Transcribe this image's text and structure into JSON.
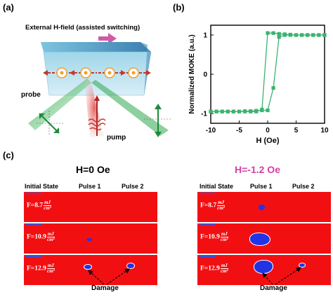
{
  "panel_a": {
    "label": "(a)",
    "title": "External H-field (assisted switching)",
    "probe_label": "probe",
    "pump_label": "pump"
  },
  "panel_b": {
    "label": "(b)"
  },
  "panel_c": {
    "label": "(c)",
    "left_title": "H=0 Oe",
    "right_title": "H=-1.2 Oe",
    "right_title_color": "#d6409f",
    "columns": [
      "Initial State",
      "Pulse 1",
      "Pulse 2"
    ],
    "rows": [
      {
        "prefix": "F=8.7",
        "unit_num": "mJ",
        "unit_den": "cm²"
      },
      {
        "prefix": "F=10.9",
        "unit_num": "mJ",
        "unit_den": "cm²"
      },
      {
        "prefix": "F=12.9",
        "unit_num": "mJ",
        "unit_den": "cm²"
      }
    ],
    "damage_label": "Damage",
    "cell_color": "#f20f12"
  },
  "chart_data": {
    "type": "line",
    "xlabel": "H (Oe)",
    "ylabel": "Normalized MOKE (a.u.)",
    "xlim": [
      -10,
      10
    ],
    "ylim": [
      -1.25,
      1.25
    ],
    "xticks": [
      -10,
      -5,
      0,
      5,
      10
    ],
    "yticks": [
      -1,
      0,
      1
    ],
    "color": "#3cb371",
    "series": [
      {
        "x": [
          -10,
          -9,
          -8,
          -7,
          -6,
          -5,
          -4,
          -3,
          -2,
          -1,
          0,
          1,
          2,
          3,
          4,
          5,
          6,
          7,
          8,
          9,
          10
        ],
        "y": [
          -0.95,
          -0.95,
          -0.95,
          -0.95,
          -0.95,
          -0.95,
          -0.95,
          -0.95,
          -0.95,
          -0.9,
          1.05,
          1.05,
          1.03,
          1.02,
          1.01,
          1.0,
          1.0,
          1.0,
          1.0,
          1.0,
          1.0
        ]
      },
      {
        "x": [
          10,
          9,
          8,
          7,
          6,
          5,
          4,
          3,
          2,
          1,
          0,
          -1,
          -2,
          -3,
          -4,
          -5,
          -6,
          -7,
          -8,
          -9,
          -10
        ],
        "y": [
          1.0,
          1.0,
          1.0,
          1.0,
          1.0,
          1.0,
          1.0,
          1.0,
          0.95,
          -0.35,
          -0.92,
          -0.92,
          -0.93,
          -0.94,
          -0.94,
          -0.95,
          -0.95,
          -0.95,
          -0.95,
          -0.95,
          -0.95
        ]
      }
    ]
  }
}
